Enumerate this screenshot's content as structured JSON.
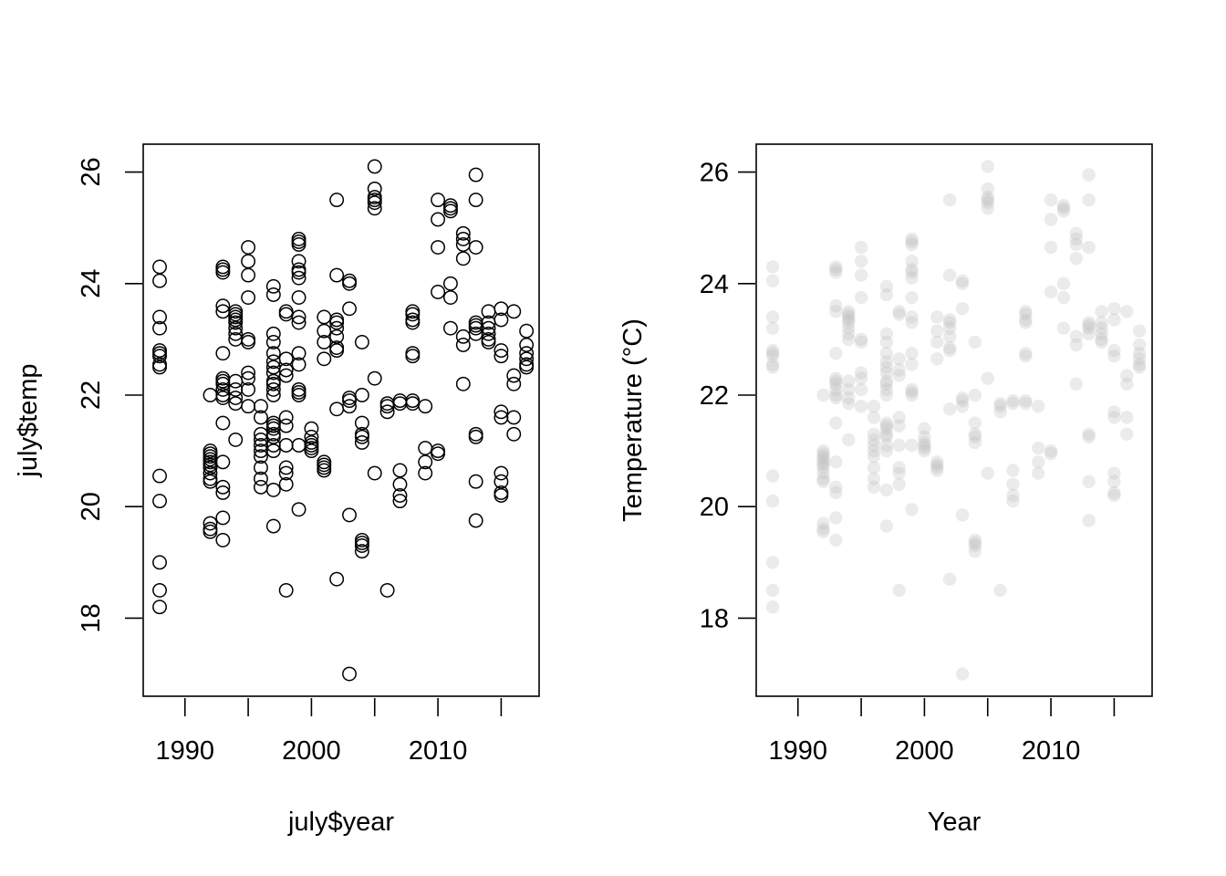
{
  "chart_data": [
    {
      "type": "scatter",
      "title": "",
      "xlabel": "july$year",
      "ylabel": "july$temp",
      "xlim": [
        1986.7,
        2018.0
      ],
      "ylim": [
        16.6,
        26.5
      ],
      "xticks": [
        1990,
        2000,
        2010
      ],
      "xticks_minor": [
        1995,
        2005,
        2015
      ],
      "yticks": [
        18,
        20,
        22,
        24,
        26
      ],
      "grid": false,
      "marker": "open-circle",
      "color": "#000000",
      "points": [
        [
          1988,
          24.3
        ],
        [
          1988,
          24.05
        ],
        [
          1988,
          23.4
        ],
        [
          1988,
          23.2
        ],
        [
          1988,
          22.8
        ],
        [
          1988,
          22.75
        ],
        [
          1988,
          22.7
        ],
        [
          1988,
          22.55
        ],
        [
          1988,
          22.5
        ],
        [
          1988,
          20.55
        ],
        [
          1988,
          20.1
        ],
        [
          1988,
          19.0
        ],
        [
          1988,
          18.5
        ],
        [
          1988,
          18.2
        ],
        [
          1992,
          22.0
        ],
        [
          1992,
          21.0
        ],
        [
          1992,
          20.95
        ],
        [
          1992,
          20.9
        ],
        [
          1992,
          20.85
        ],
        [
          1992,
          20.8
        ],
        [
          1992,
          20.75
        ],
        [
          1992,
          20.7
        ],
        [
          1992,
          20.6
        ],
        [
          1992,
          20.5
        ],
        [
          1992,
          20.45
        ],
        [
          1992,
          19.7
        ],
        [
          1992,
          19.6
        ],
        [
          1992,
          19.55
        ],
        [
          1993,
          24.3
        ],
        [
          1993,
          24.25
        ],
        [
          1993,
          24.2
        ],
        [
          1993,
          23.6
        ],
        [
          1993,
          23.5
        ],
        [
          1993,
          22.75
        ],
        [
          1993,
          22.3
        ],
        [
          1993,
          22.25
        ],
        [
          1993,
          22.2
        ],
        [
          1993,
          22.1
        ],
        [
          1993,
          22.0
        ],
        [
          1993,
          21.95
        ],
        [
          1993,
          21.5
        ],
        [
          1993,
          20.8
        ],
        [
          1993,
          20.35
        ],
        [
          1993,
          20.25
        ],
        [
          1993,
          19.8
        ],
        [
          1993,
          19.4
        ],
        [
          1994,
          23.5
        ],
        [
          1994,
          23.45
        ],
        [
          1994,
          23.4
        ],
        [
          1994,
          23.35
        ],
        [
          1994,
          23.3
        ],
        [
          1994,
          23.2
        ],
        [
          1994,
          23.1
        ],
        [
          1994,
          23.0
        ],
        [
          1994,
          22.25
        ],
        [
          1994,
          22.1
        ],
        [
          1994,
          21.95
        ],
        [
          1994,
          21.85
        ],
        [
          1994,
          21.2
        ],
        [
          1995,
          24.65
        ],
        [
          1995,
          24.4
        ],
        [
          1995,
          24.15
        ],
        [
          1995,
          23.75
        ],
        [
          1995,
          23.0
        ],
        [
          1995,
          22.95
        ],
        [
          1995,
          22.4
        ],
        [
          1995,
          22.3
        ],
        [
          1995,
          22.1
        ],
        [
          1995,
          21.8
        ],
        [
          1996,
          21.8
        ],
        [
          1996,
          21.6
        ],
        [
          1996,
          21.3
        ],
        [
          1996,
          21.2
        ],
        [
          1996,
          21.1
        ],
        [
          1996,
          21.0
        ],
        [
          1996,
          20.9
        ],
        [
          1996,
          20.7
        ],
        [
          1996,
          20.5
        ],
        [
          1996,
          20.35
        ],
        [
          1997,
          23.95
        ],
        [
          1997,
          23.8
        ],
        [
          1997,
          23.1
        ],
        [
          1997,
          22.95
        ],
        [
          1997,
          22.75
        ],
        [
          1997,
          22.6
        ],
        [
          1997,
          22.5
        ],
        [
          1997,
          22.4
        ],
        [
          1997,
          22.25
        ],
        [
          1997,
          22.2
        ],
        [
          1997,
          22.1
        ],
        [
          1997,
          22.0
        ],
        [
          1997,
          21.5
        ],
        [
          1997,
          21.45
        ],
        [
          1997,
          21.4
        ],
        [
          1997,
          21.3
        ],
        [
          1997,
          21.25
        ],
        [
          1997,
          21.1
        ],
        [
          1997,
          21.0
        ],
        [
          1997,
          20.3
        ],
        [
          1997,
          19.65
        ],
        [
          1998,
          23.5
        ],
        [
          1998,
          23.45
        ],
        [
          1998,
          22.65
        ],
        [
          1998,
          22.45
        ],
        [
          1998,
          22.35
        ],
        [
          1998,
          21.6
        ],
        [
          1998,
          21.45
        ],
        [
          1998,
          21.1
        ],
        [
          1998,
          20.7
        ],
        [
          1998,
          20.6
        ],
        [
          1998,
          20.4
        ],
        [
          1998,
          18.5
        ],
        [
          1999,
          24.8
        ],
        [
          1999,
          24.75
        ],
        [
          1999,
          24.7
        ],
        [
          1999,
          24.4
        ],
        [
          1999,
          24.25
        ],
        [
          1999,
          24.2
        ],
        [
          1999,
          24.1
        ],
        [
          1999,
          23.75
        ],
        [
          1999,
          23.4
        ],
        [
          1999,
          23.3
        ],
        [
          1999,
          22.75
        ],
        [
          1999,
          22.55
        ],
        [
          1999,
          22.1
        ],
        [
          1999,
          22.05
        ],
        [
          1999,
          22.0
        ],
        [
          1999,
          21.1
        ],
        [
          1999,
          19.95
        ],
        [
          2000,
          21.4
        ],
        [
          2000,
          21.25
        ],
        [
          2000,
          21.15
        ],
        [
          2000,
          21.1
        ],
        [
          2000,
          21.05
        ],
        [
          2000,
          21.0
        ],
        [
          2001,
          23.4
        ],
        [
          2001,
          23.15
        ],
        [
          2001,
          22.95
        ],
        [
          2001,
          22.65
        ],
        [
          2001,
          20.8
        ],
        [
          2001,
          20.75
        ],
        [
          2001,
          20.7
        ],
        [
          2001,
          20.65
        ],
        [
          2002,
          25.5
        ],
        [
          2002,
          24.15
        ],
        [
          2002,
          23.35
        ],
        [
          2002,
          23.3
        ],
        [
          2002,
          23.2
        ],
        [
          2002,
          23.05
        ],
        [
          2002,
          22.85
        ],
        [
          2002,
          22.8
        ],
        [
          2002,
          21.75
        ],
        [
          2002,
          18.7
        ],
        [
          2003,
          24.05
        ],
        [
          2003,
          24.0
        ],
        [
          2003,
          23.55
        ],
        [
          2003,
          21.95
        ],
        [
          2003,
          21.9
        ],
        [
          2003,
          21.8
        ],
        [
          2003,
          19.85
        ],
        [
          2003,
          17.0
        ],
        [
          2004,
          22.95
        ],
        [
          2004,
          22.0
        ],
        [
          2004,
          21.5
        ],
        [
          2004,
          21.3
        ],
        [
          2004,
          21.25
        ],
        [
          2004,
          21.15
        ],
        [
          2004,
          19.4
        ],
        [
          2004,
          19.35
        ],
        [
          2004,
          19.3
        ],
        [
          2004,
          19.2
        ],
        [
          2005,
          26.1
        ],
        [
          2005,
          25.7
        ],
        [
          2005,
          25.55
        ],
        [
          2005,
          25.5
        ],
        [
          2005,
          25.45
        ],
        [
          2005,
          25.35
        ],
        [
          2005,
          22.3
        ],
        [
          2005,
          20.6
        ],
        [
          2006,
          21.85
        ],
        [
          2006,
          21.8
        ],
        [
          2006,
          21.7
        ],
        [
          2006,
          18.5
        ],
        [
          2007,
          21.9
        ],
        [
          2007,
          21.85
        ],
        [
          2007,
          20.65
        ],
        [
          2007,
          20.4
        ],
        [
          2007,
          20.2
        ],
        [
          2007,
          20.1
        ],
        [
          2008,
          23.5
        ],
        [
          2008,
          23.45
        ],
        [
          2008,
          23.35
        ],
        [
          2008,
          23.3
        ],
        [
          2008,
          22.75
        ],
        [
          2008,
          22.7
        ],
        [
          2008,
          21.9
        ],
        [
          2008,
          21.85
        ],
        [
          2009,
          21.8
        ],
        [
          2009,
          21.05
        ],
        [
          2009,
          20.8
        ],
        [
          2009,
          20.6
        ],
        [
          2010,
          25.5
        ],
        [
          2010,
          25.15
        ],
        [
          2010,
          24.65
        ],
        [
          2010,
          23.85
        ],
        [
          2010,
          21.0
        ],
        [
          2010,
          20.95
        ],
        [
          2011,
          25.4
        ],
        [
          2011,
          25.35
        ],
        [
          2011,
          25.3
        ],
        [
          2011,
          24.0
        ],
        [
          2011,
          23.75
        ],
        [
          2011,
          23.2
        ],
        [
          2012,
          24.9
        ],
        [
          2012,
          24.8
        ],
        [
          2012,
          24.7
        ],
        [
          2012,
          24.45
        ],
        [
          2012,
          23.05
        ],
        [
          2012,
          22.9
        ],
        [
          2012,
          22.2
        ],
        [
          2013,
          25.95
        ],
        [
          2013,
          25.5
        ],
        [
          2013,
          24.65
        ],
        [
          2013,
          23.3
        ],
        [
          2013,
          23.25
        ],
        [
          2013,
          23.2
        ],
        [
          2013,
          23.1
        ],
        [
          2013,
          21.3
        ],
        [
          2013,
          21.25
        ],
        [
          2013,
          20.45
        ],
        [
          2013,
          19.75
        ],
        [
          2014,
          23.5
        ],
        [
          2014,
          23.3
        ],
        [
          2014,
          23.2
        ],
        [
          2014,
          23.1
        ],
        [
          2014,
          23.0
        ],
        [
          2014,
          22.95
        ],
        [
          2015,
          23.55
        ],
        [
          2015,
          23.35
        ],
        [
          2015,
          22.8
        ],
        [
          2015,
          22.7
        ],
        [
          2015,
          21.7
        ],
        [
          2015,
          21.6
        ],
        [
          2015,
          20.6
        ],
        [
          2015,
          20.45
        ],
        [
          2015,
          20.25
        ],
        [
          2015,
          20.2
        ],
        [
          2016,
          23.5
        ],
        [
          2016,
          22.35
        ],
        [
          2016,
          22.2
        ],
        [
          2016,
          21.6
        ],
        [
          2016,
          21.3
        ],
        [
          2017,
          23.15
        ],
        [
          2017,
          22.9
        ],
        [
          2017,
          22.75
        ],
        [
          2017,
          22.65
        ],
        [
          2017,
          22.55
        ],
        [
          2017,
          22.5
        ]
      ]
    },
    {
      "type": "scatter",
      "title": "",
      "xlabel": "Year",
      "ylabel": "Temperature (°C)",
      "xlim": [
        1986.7,
        2018.0
      ],
      "ylim": [
        16.6,
        26.5
      ],
      "xticks": [
        1990,
        2000,
        2010
      ],
      "xticks_minor": [
        1995,
        2005,
        2015
      ],
      "yticks": [
        18,
        20,
        22,
        24,
        26
      ],
      "grid": false,
      "marker": "filled-circle-translucent",
      "color": "#bebebe",
      "opacity": 0.3,
      "points_same_as_panel": 0
    }
  ]
}
